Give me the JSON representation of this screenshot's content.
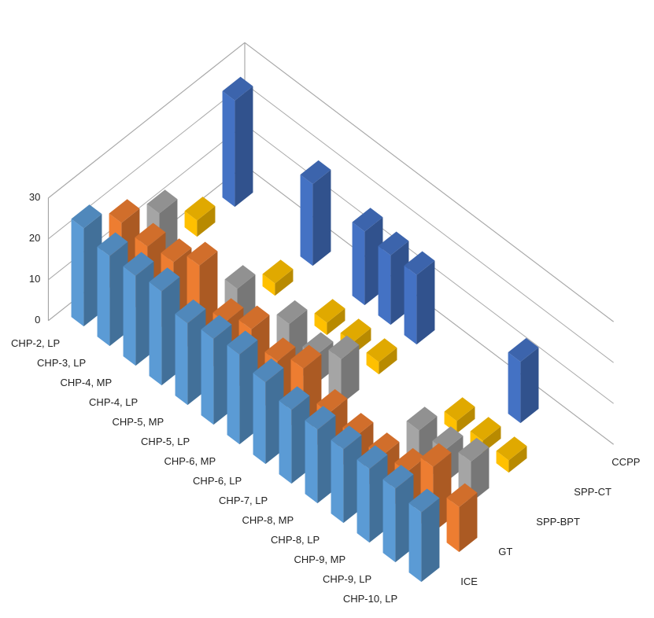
{
  "chart_data": {
    "type": "bar3d",
    "categories": [
      "CHP-2, LP",
      "CHP-3, LP",
      "CHP-4, MP",
      "CHP-4, LP",
      "CHP-5, MP",
      "CHP-5, LP",
      "CHP-6, MP",
      "CHP-6, LP",
      "CHP-7, LP",
      "CHP-8, MP",
      "CHP-8, LP",
      "CHP-9, MP",
      "CHP-9, LP",
      "CHP-10, LP"
    ],
    "series": [
      {
        "name": "ICE",
        "color": "#5b9bd5",
        "values": [
          24,
          22,
          22,
          23,
          20,
          21,
          22,
          20,
          18,
          18,
          18,
          18,
          18,
          17
        ]
      },
      {
        "name": "GT",
        "color": "#ed7d31",
        "values": [
          18,
          17,
          18,
          22,
          13,
          16,
          13,
          16,
          10,
          9,
          9,
          10,
          16,
          11
        ]
      },
      {
        "name": "SPP-BPT",
        "color": "#a5a5a5",
        "values": [
          13,
          null,
          null,
          9,
          null,
          10,
          7,
          11,
          null,
          null,
          8,
          8,
          10,
          null
        ]
      },
      {
        "name": "SPP-CT",
        "color": "#ffc000",
        "values": [
          4,
          null,
          null,
          3,
          null,
          3,
          3,
          3,
          null,
          null,
          3,
          3,
          3,
          null
        ]
      },
      {
        "name": "CCPP",
        "color": "#4472c4",
        "values": [
          26,
          null,
          null,
          20,
          null,
          18,
          17,
          17,
          null,
          null,
          null,
          15,
          null,
          null
        ]
      }
    ],
    "zlim": [
      0,
      30
    ],
    "zticks": [
      0,
      10,
      20,
      30
    ],
    "grid": true
  }
}
